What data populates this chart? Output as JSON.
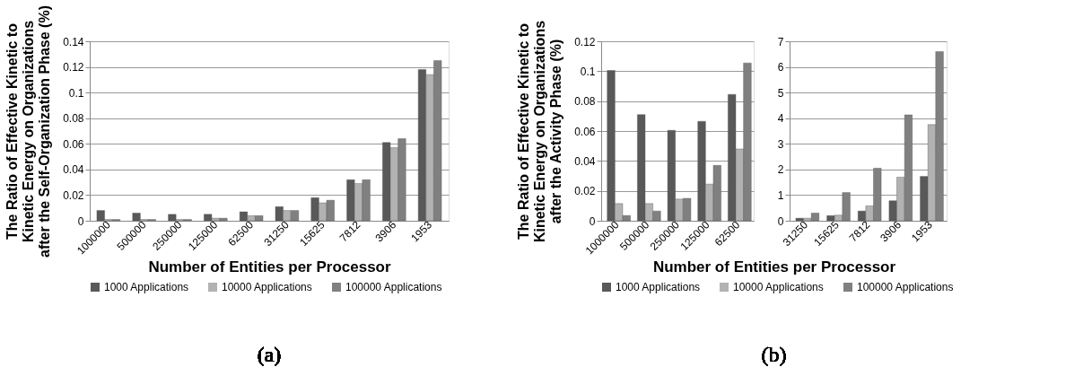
{
  "chart_data": [
    {
      "type": "bar",
      "ylabel": "The Ratio of Effective Kinetic to\nKinetic Energy on Organizations\nafter the Self-Organization Phase (%)",
      "xlabel": "Number of Entities per Processor",
      "categories": [
        "1000000",
        "500000",
        "250000",
        "125000",
        "62500",
        "31250",
        "15625",
        "7812",
        "3906",
        "1953"
      ],
      "series": [
        {
          "name": "1000 Applications",
          "color": "#595959",
          "values": [
            0.008,
            0.006,
            0.005,
            0.005,
            0.007,
            0.011,
            0.018,
            0.032,
            0.061,
            0.118
          ]
        },
        {
          "name": "10000 Applications",
          "color": "#b2b2b2",
          "values": [
            0.001,
            0.001,
            0.001,
            0.002,
            0.004,
            0.008,
            0.014,
            0.029,
            0.057,
            0.114
          ]
        },
        {
          "name": "100000 Applications",
          "color": "#808080",
          "values": [
            0.001,
            0.001,
            0.001,
            0.002,
            0.004,
            0.008,
            0.016,
            0.032,
            0.064,
            0.125
          ]
        }
      ],
      "ylim": [
        0,
        0.14
      ],
      "yticks": [
        0,
        0.02,
        0.04,
        0.06,
        0.08,
        0.1,
        0.12,
        0.14
      ],
      "grid": "y",
      "legend": "bottom",
      "annotations": [
        "(a)"
      ]
    },
    {
      "type": "bar",
      "ylabel": "The Ratio of Effective Kinetic to\nKinetic Energy on Organizations\nafter the Activity Phase (%)",
      "xlabel": "Number of Entities per Processor",
      "categories": [
        "1000000",
        "500000",
        "250000",
        "125000",
        "62500"
      ],
      "series": [
        {
          "name": "1000 Applications",
          "color": "#595959",
          "values": [
            0.1005,
            0.071,
            0.0605,
            0.0665,
            0.0845
          ]
        },
        {
          "name": "10000 Applications",
          "color": "#b2b2b2",
          "values": [
            0.0115,
            0.0115,
            0.0145,
            0.0245,
            0.048
          ]
        },
        {
          "name": "100000 Applications",
          "color": "#808080",
          "values": [
            0.0035,
            0.0065,
            0.015,
            0.037,
            0.1055
          ]
        }
      ],
      "ylim": [
        0,
        0.12
      ],
      "yticks": [
        0,
        0.02,
        0.04,
        0.06,
        0.08,
        0.1,
        0.12
      ],
      "grid": "y",
      "legend": "bottom",
      "annotations": [
        "(b)"
      ]
    },
    {
      "type": "bar",
      "categories": [
        "31250",
        "15625",
        "7812",
        "3906",
        "1953"
      ],
      "series": [
        {
          "color": "#595959",
          "values": [
            0.1,
            0.2,
            0.38,
            0.78,
            1.73
          ]
        },
        {
          "color": "#b2b2b2",
          "values": [
            0.1,
            0.22,
            0.58,
            1.7,
            3.75
          ]
        },
        {
          "color": "#808080",
          "values": [
            0.3,
            1.1,
            2.05,
            4.13,
            6.6
          ]
        }
      ],
      "ylim": [
        0,
        7
      ],
      "yticks": [
        0,
        1,
        2,
        3,
        4,
        5,
        6,
        7
      ],
      "grid": "y"
    }
  ]
}
